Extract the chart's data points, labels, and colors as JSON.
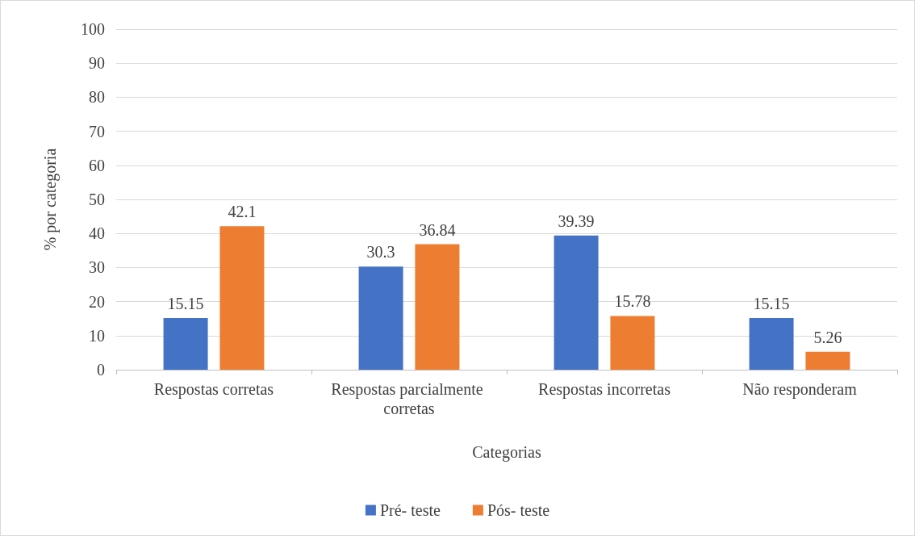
{
  "chart_data": {
    "type": "bar",
    "xlabel": "Categorias",
    "ylabel": "% por categoria",
    "categories": [
      "Respostas corretas",
      "Respostas parcialmente corretas",
      "Respostas incorretas",
      "Não responderam"
    ],
    "series": [
      {
        "name": "Pré- teste",
        "color": "#4472c4",
        "values": [
          15.15,
          30.3,
          39.39,
          15.15
        ]
      },
      {
        "name": "Pós- teste",
        "color": "#ed7d31",
        "values": [
          42.1,
          36.84,
          15.78,
          5.26
        ]
      }
    ],
    "ylim": [
      0,
      100
    ],
    "yticks": [
      0,
      10,
      20,
      30,
      40,
      50,
      60,
      70,
      80,
      90,
      100
    ],
    "grid": "y",
    "legend": "bottom",
    "data_labels": true
  }
}
